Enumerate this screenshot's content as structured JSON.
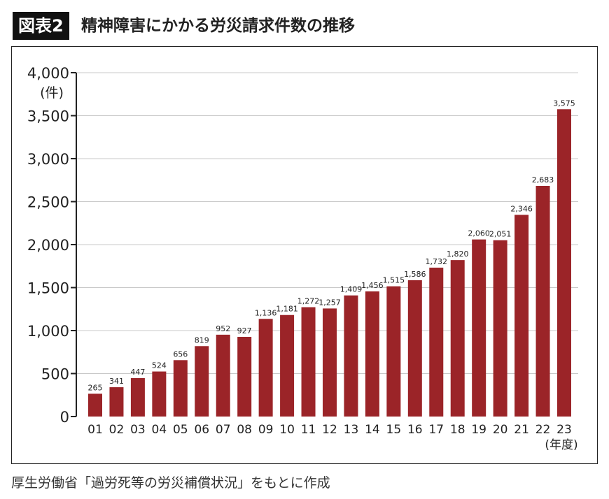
{
  "header": {
    "badge": "図表2",
    "title": "精神障害にかかる労災請求件数の推移"
  },
  "source": "厚生労働省「過労死等の労災補償状況」をもとに作成",
  "chart_data": {
    "type": "bar",
    "title": "精神障害にかかる労災請求件数の推移",
    "ylabel": "(件)",
    "xlabel": "(年度)",
    "ylim": [
      0,
      4000
    ],
    "yticks": [
      0,
      500,
      1000,
      1500,
      2000,
      2500,
      3000,
      3500,
      4000
    ],
    "ytick_labels": [
      "0",
      "500",
      "1,000",
      "1,500",
      "2,000",
      "2,500",
      "3,000",
      "3,500",
      "4,000"
    ],
    "grid": true,
    "bar_color": "#9b2428",
    "categories": [
      "01",
      "02",
      "03",
      "04",
      "05",
      "06",
      "07",
      "08",
      "09",
      "10",
      "11",
      "12",
      "13",
      "14",
      "15",
      "16",
      "17",
      "18",
      "19",
      "20",
      "21",
      "22",
      "23"
    ],
    "values": [
      265,
      341,
      447,
      524,
      656,
      819,
      952,
      927,
      1136,
      1181,
      1272,
      1257,
      1409,
      1456,
      1515,
      1586,
      1732,
      1820,
      2060,
      2051,
      2346,
      2683,
      3575
    ],
    "data_labels": [
      "265",
      "341",
      "447",
      "524",
      "656",
      "819",
      "952",
      "927",
      "1,136",
      "1,181",
      "1,272",
      "1,257",
      "1,409",
      "1,456",
      "1,515",
      "1,586",
      "1,732",
      "1,820",
      "2,060",
      "2,051",
      "2,346",
      "2,683",
      "3,575"
    ]
  }
}
